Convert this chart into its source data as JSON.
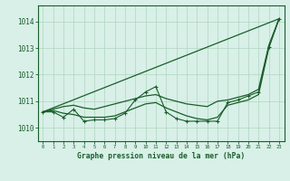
{
  "background_color": "#d8f0e8",
  "grid_color": "#b0d4c0",
  "line_color": "#1a5e2a",
  "title": "Graphe pression niveau de la mer (hPa)",
  "xlim": [
    -0.5,
    23.5
  ],
  "ylim": [
    1009.5,
    1014.6
  ],
  "yticks": [
    1010,
    1011,
    1012,
    1013,
    1014
  ],
  "xticks": [
    0,
    1,
    2,
    3,
    4,
    5,
    6,
    7,
    8,
    9,
    10,
    11,
    12,
    13,
    14,
    15,
    16,
    17,
    18,
    19,
    20,
    21,
    22,
    23
  ],
  "series_marked": [
    1010.6,
    1010.6,
    1010.4,
    1010.7,
    1010.25,
    1010.3,
    1010.3,
    1010.35,
    1010.55,
    1011.05,
    1011.35,
    1011.55,
    1010.6,
    1010.35,
    1010.25,
    1010.25,
    1010.25,
    1010.25,
    1010.95,
    1011.05,
    1011.2,
    1011.35,
    1013.05,
    1014.1
  ],
  "series_smooth_upper": [
    1010.6,
    1010.7,
    1010.8,
    1010.85,
    1010.75,
    1010.7,
    1010.8,
    1010.9,
    1011.0,
    1011.1,
    1011.2,
    1011.25,
    1011.1,
    1011.0,
    1010.9,
    1010.85,
    1010.8,
    1011.0,
    1011.05,
    1011.15,
    1011.25,
    1011.45,
    1013.1,
    1014.1
  ],
  "series_smooth_lower": [
    1010.6,
    1010.65,
    1010.55,
    1010.5,
    1010.4,
    1010.4,
    1010.4,
    1010.45,
    1010.6,
    1010.75,
    1010.9,
    1010.95,
    1010.75,
    1010.6,
    1010.45,
    1010.35,
    1010.3,
    1010.4,
    1010.85,
    1010.95,
    1011.05,
    1011.25,
    1013.0,
    1014.1
  ],
  "series_straight": [
    1010.6,
    1014.1
  ]
}
